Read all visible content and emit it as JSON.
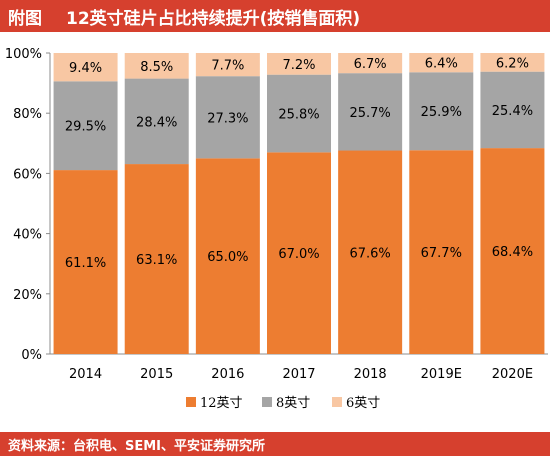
{
  "header": {
    "prefix": "附图",
    "title": "12英寸硅片占比持续提升(按销售面积)"
  },
  "footer": {
    "source": "资料来源：台积电、SEMI、平安证券研究所"
  },
  "colors": {
    "header_bg": "#d6402e",
    "series": [
      "#ed7d31",
      "#a5a5a5",
      "#f8c7a3"
    ]
  },
  "chart_data": {
    "type": "bar",
    "stacked": true,
    "categories": [
      "2014",
      "2015",
      "2016",
      "2017",
      "2018",
      "2019E",
      "2020E"
    ],
    "series": [
      {
        "name": "12英寸",
        "values": [
          61.1,
          63.1,
          65.0,
          67.0,
          67.6,
          67.7,
          68.4
        ],
        "labels": [
          "61.1%",
          "63.1%",
          "65.0%",
          "67.0%",
          "67.6%",
          "67.7%",
          "68.4%"
        ]
      },
      {
        "name": "8英寸",
        "values": [
          29.5,
          28.4,
          27.3,
          25.8,
          25.7,
          25.9,
          25.4
        ],
        "labels": [
          "29.5%",
          "28.4%",
          "27.3%",
          "25.8%",
          "25.7%",
          "25.9%",
          "25.4%"
        ]
      },
      {
        "name": "6英寸",
        "values": [
          9.4,
          8.5,
          7.7,
          7.2,
          6.7,
          6.4,
          6.2
        ],
        "labels": [
          "9.4%",
          "8.5%",
          "7.7%",
          "7.2%",
          "6.7%",
          "6.4%",
          "6.2%"
        ]
      }
    ],
    "yticks": [
      "0%",
      "20%",
      "40%",
      "60%",
      "80%",
      "100%"
    ],
    "ylim": [
      0,
      100
    ],
    "grid": false,
    "legend_position": "bottom"
  }
}
